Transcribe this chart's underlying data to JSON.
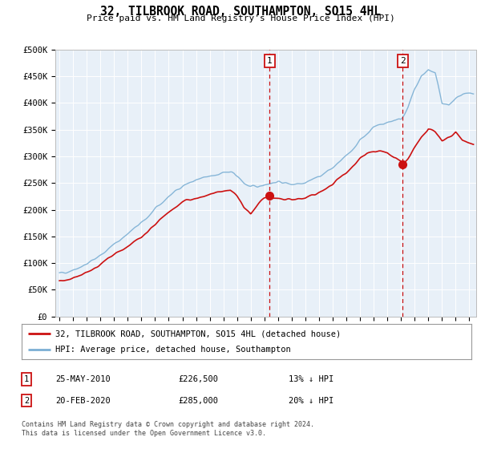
{
  "title": "32, TILBROOK ROAD, SOUTHAMPTON, SO15 4HL",
  "subtitle": "Price paid vs. HM Land Registry's House Price Index (HPI)",
  "bg_color": "#e8f0f8",
  "ylim": [
    0,
    500000
  ],
  "yticks": [
    0,
    50000,
    100000,
    150000,
    200000,
    250000,
    300000,
    350000,
    400000,
    450000,
    500000
  ],
  "ytick_labels": [
    "£0",
    "£50K",
    "£100K",
    "£150K",
    "£200K",
    "£250K",
    "£300K",
    "£350K",
    "£400K",
    "£450K",
    "£500K"
  ],
  "xlim_start": 1994.7,
  "xlim_end": 2025.5,
  "xticks": [
    1995,
    1996,
    1997,
    1998,
    1999,
    2000,
    2001,
    2002,
    2003,
    2004,
    2005,
    2006,
    2007,
    2008,
    2009,
    2010,
    2011,
    2012,
    2013,
    2014,
    2015,
    2016,
    2017,
    2018,
    2019,
    2020,
    2021,
    2022,
    2023,
    2024,
    2025
  ],
  "hpi_color": "#7bafd4",
  "price_color": "#cc1111",
  "marker1_x": 2010.38,
  "marker2_x": 2020.12,
  "marker1_price": 226500,
  "marker2_price": 285000,
  "legend_label1": "32, TILBROOK ROAD, SOUTHAMPTON, SO15 4HL (detached house)",
  "legend_label2": "HPI: Average price, detached house, Southampton",
  "note1_date": "25-MAY-2010",
  "note1_price": "£226,500",
  "note1_pct": "13% ↓ HPI",
  "note2_date": "20-FEB-2020",
  "note2_price": "£285,000",
  "note2_pct": "20% ↓ HPI",
  "footer": "Contains HM Land Registry data © Crown copyright and database right 2024.\nThis data is licensed under the Open Government Licence v3.0."
}
